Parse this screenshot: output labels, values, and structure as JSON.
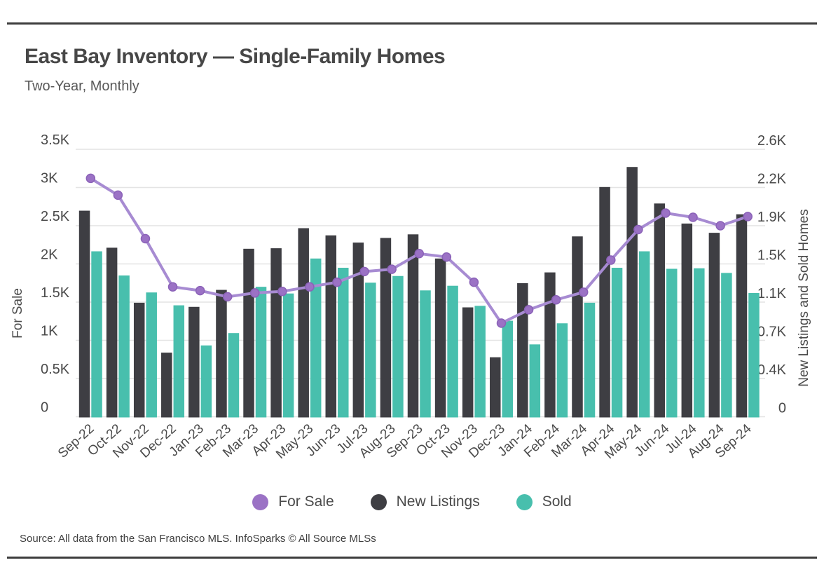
{
  "header": {
    "title": "East Bay Inventory — Single-Family Homes",
    "subtitle": "Two-Year, Monthly"
  },
  "footer": {
    "source": "Source:  All data from the San Francisco MLS. InfoSparks © All Source MLSs"
  },
  "chart_data": {
    "type": "bar-line-combo",
    "title": "East Bay Inventory — Single-Family Homes",
    "subtitle": "Two-Year, Monthly",
    "categories": [
      "Sep-22",
      "Oct-22",
      "Nov-22",
      "Dec-22",
      "Jan-23",
      "Feb-23",
      "Mar-23",
      "Apr-23",
      "May-23",
      "Jun-23",
      "Jul-23",
      "Aug-23",
      "Sep-23",
      "Oct-23",
      "Nov-23",
      "Dec-23",
      "Jan-24",
      "Feb-24",
      "Mar-24",
      "Apr-24",
      "May-24",
      "Jun-24",
      "Jul-24",
      "Aug-24",
      "Sep-24"
    ],
    "series": [
      {
        "name": "For Sale",
        "type": "line",
        "axis": "left",
        "color": "#9B72C5",
        "line_color": "#A78BD2",
        "dot_edge_color": "#8B62B8",
        "values": [
          3120,
          2900,
          2330,
          1700,
          1650,
          1570,
          1620,
          1640,
          1700,
          1760,
          1900,
          1930,
          2135,
          2090,
          1760,
          1225,
          1400,
          1530,
          1630,
          2050,
          2450,
          2665,
          2610,
          2500,
          2620
        ]
      },
      {
        "name": "New Listings",
        "type": "bar",
        "axis": "right",
        "color": "#3E3E43",
        "values": [
          2010,
          1650,
          1115,
          630,
          1075,
          1240,
          1640,
          1645,
          1840,
          1770,
          1700,
          1745,
          1780,
          1545,
          1070,
          585,
          1305,
          1410,
          1760,
          2240,
          2435,
          2080,
          1885,
          1795,
          1975
        ]
      },
      {
        "name": "Sold",
        "type": "bar",
        "axis": "right",
        "color": "#48BFAD",
        "values": [
          1615,
          1380,
          1215,
          1090,
          700,
          820,
          1270,
          1205,
          1545,
          1455,
          1310,
          1375,
          1235,
          1280,
          1085,
          940,
          710,
          915,
          1115,
          1455,
          1615,
          1445,
          1450,
          1405,
          1210
        ]
      }
    ],
    "left_axis": {
      "label": "For Sale",
      "max": 3500,
      "tick_values": [
        3500,
        3000,
        2500,
        2000,
        1500,
        1000,
        500,
        0
      ],
      "ticks": [
        "3.5K",
        "3K",
        "2.5K",
        "2K",
        "1.5K",
        "1K",
        "0.5K",
        "0"
      ]
    },
    "right_axis": {
      "label": "New Listings and Sold Homes",
      "max": 2600,
      "ticks": [
        "2.6K",
        "2.2K",
        "1.9K",
        "1.5K",
        "1.1K",
        "0.7K",
        "0.4K",
        "0"
      ]
    },
    "grid": true,
    "grid_color": "#E4E4E4",
    "legend_position": "bottom"
  }
}
